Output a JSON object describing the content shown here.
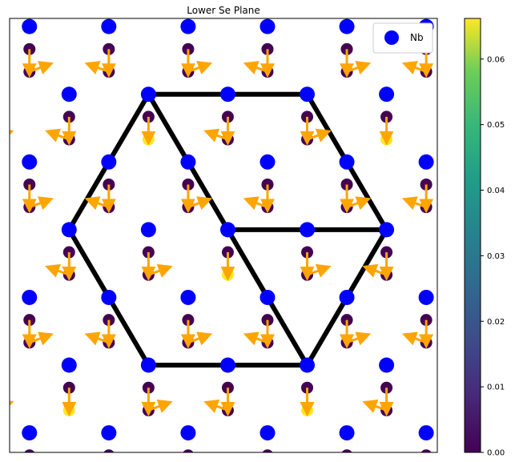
{
  "chart_data": {
    "type": "scatter",
    "title": "Lower Se Plane",
    "xlabel": "",
    "ylabel": "",
    "grid": false,
    "legend": {
      "placement": "top-right",
      "entries": [
        {
          "label": "Nb",
          "color": "#0000ff"
        }
      ]
    },
    "lattice": {
      "a": 2.0,
      "row_height": 1.7320508,
      "xlim": [
        -0.5,
        10.28
      ],
      "ylim": [
        -0.5,
        10.6
      ]
    },
    "nb_sites": {
      "rows": [
        0,
        1,
        2,
        3,
        4,
        5,
        6
      ],
      "columns": [
        0,
        1,
        2,
        3,
        4,
        5
      ],
      "row_offset_odd": 1.0,
      "row_offset_even": 0.0
    },
    "se_sites": {
      "color_scale": {
        "name": "viridis",
        "min": 0.0,
        "max": 0.0662
      },
      "low_value": 0.0,
      "high_value": 0.0662
    },
    "displacement_arrows": {
      "color": "#ffa500",
      "length": 0.55
    },
    "outline": {
      "color": "#000000",
      "note": "hexagonal supercell with three internal bonds"
    },
    "colorbar": {
      "ticks": [
        "0.00",
        "0.01",
        "0.02",
        "0.03",
        "0.04",
        "0.05",
        "0.06"
      ],
      "tick_values": [
        0.0,
        0.01,
        0.02,
        0.03,
        0.04,
        0.05,
        0.06
      ]
    }
  }
}
